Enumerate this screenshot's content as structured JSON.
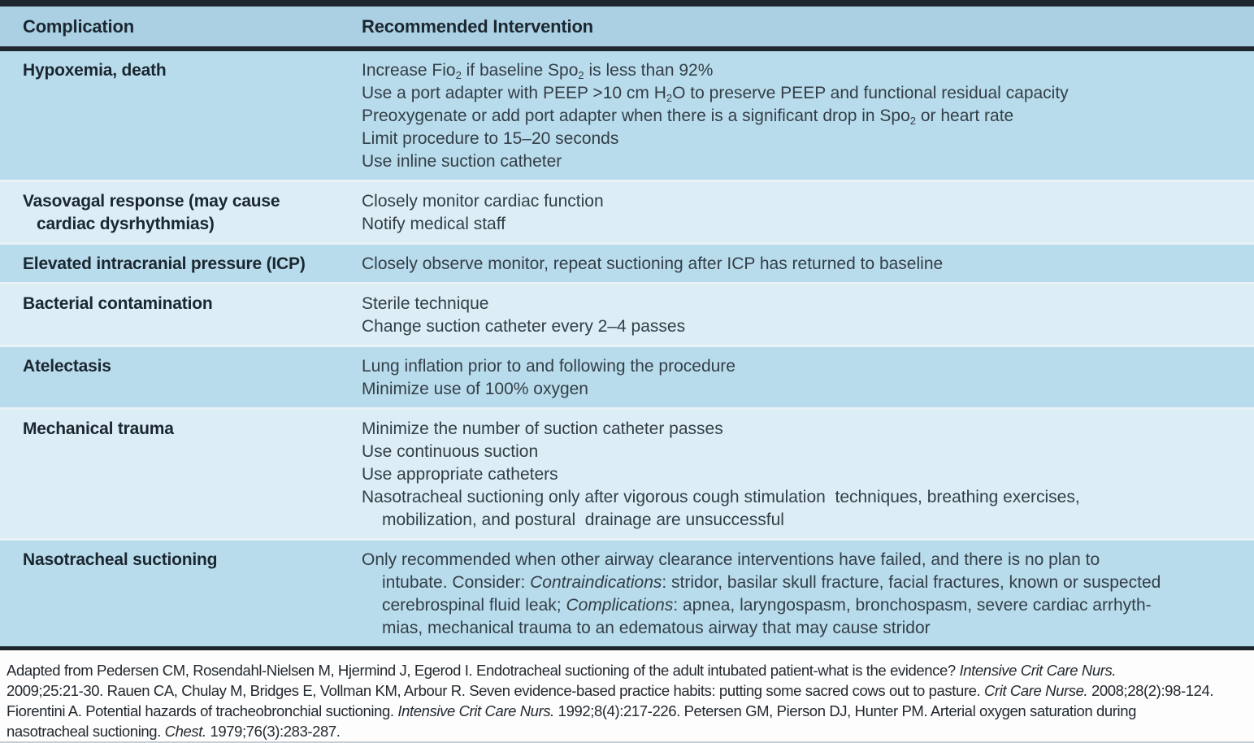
{
  "colors": {
    "header_bg": "#abd0e4",
    "row_medium": "#b9dcec",
    "row_light": "#dcedf5",
    "rule_dark": "#20262e",
    "heading_text": "#1b2730",
    "body_text": "#333e47",
    "footer_text": "#23292f",
    "page_bg": "#fdfdfd",
    "separator": "#e8f2f7",
    "bottom_strip": "#c6cfd5"
  },
  "table": {
    "headers": [
      {
        "label": "Complication"
      },
      {
        "label": "Recommended Intervention"
      }
    ],
    "rows": [
      {
        "tone": "medium",
        "complication": [
          {
            "seg": [
              {
                "t": "Hypoxemia, death"
              }
            ]
          }
        ],
        "interventions": [
          {
            "seg": [
              {
                "t": "Increase Fio"
              },
              {
                "t": "2",
                "s": true
              },
              {
                "t": " if baseline Spo"
              },
              {
                "t": "2",
                "s": true
              },
              {
                "t": " is less than 92%"
              }
            ]
          },
          {
            "seg": [
              {
                "t": "Use a port adapter with PEEP >10 cm H"
              },
              {
                "t": "2",
                "s": true
              },
              {
                "t": "O to preserve PEEP and functional residual capacity"
              }
            ]
          },
          {
            "seg": [
              {
                "t": "Preoxygenate or add port adapter when there is a significant drop in Spo"
              },
              {
                "t": "2",
                "s": true
              },
              {
                "t": " or heart rate"
              }
            ]
          },
          {
            "seg": [
              {
                "t": "Limit procedure to 15–20 seconds"
              }
            ]
          },
          {
            "seg": [
              {
                "t": "Use inline suction catheter"
              }
            ]
          }
        ]
      },
      {
        "tone": "light",
        "complication": [
          {
            "seg": [
              {
                "t": "Vasovagal response (may cause"
              }
            ]
          },
          {
            "ind": true,
            "seg": [
              {
                "t": "cardiac dysrhythmias)"
              }
            ]
          }
        ],
        "interventions": [
          {
            "seg": [
              {
                "t": "Closely monitor cardiac function"
              }
            ]
          },
          {
            "seg": [
              {
                "t": "Notify medical staff"
              }
            ]
          }
        ]
      },
      {
        "tone": "medium",
        "complication": [
          {
            "seg": [
              {
                "t": "Elevated intracranial pressure (ICP)"
              }
            ]
          }
        ],
        "interventions": [
          {
            "seg": [
              {
                "t": "Closely observe monitor, repeat suctioning after ICP has returned to baseline"
              }
            ]
          }
        ]
      },
      {
        "tone": "light",
        "complication": [
          {
            "seg": [
              {
                "t": "Bacterial contamination"
              }
            ]
          }
        ],
        "interventions": [
          {
            "seg": [
              {
                "t": "Sterile technique"
              }
            ]
          },
          {
            "seg": [
              {
                "t": "Change suction catheter every 2–4 passes"
              }
            ]
          }
        ]
      },
      {
        "tone": "medium",
        "complication": [
          {
            "seg": [
              {
                "t": "Atelectasis"
              }
            ]
          }
        ],
        "interventions": [
          {
            "seg": [
              {
                "t": "Lung inflation prior to and following the procedure"
              }
            ]
          },
          {
            "seg": [
              {
                "t": "Minimize use of 100% oxygen"
              }
            ]
          }
        ]
      },
      {
        "tone": "light",
        "complication": [
          {
            "seg": [
              {
                "t": "Mechanical trauma"
              }
            ]
          }
        ],
        "interventions": [
          {
            "seg": [
              {
                "t": "Minimize the number of suction catheter passes"
              }
            ]
          },
          {
            "seg": [
              {
                "t": "Use continuous suction"
              }
            ]
          },
          {
            "seg": [
              {
                "t": "Use appropriate catheters"
              }
            ]
          },
          {
            "seg": [
              {
                "t": "Nasotracheal suctioning only after vigorous cough stimulation  techniques, breathing exercises,"
              }
            ]
          },
          {
            "ind": true,
            "seg": [
              {
                "t": "mobilization, and postural  drainage are unsuccessful"
              }
            ]
          }
        ]
      },
      {
        "tone": "medium",
        "complication": [
          {
            "seg": [
              {
                "t": "Nasotracheal suctioning"
              }
            ]
          }
        ],
        "interventions": [
          {
            "seg": [
              {
                "t": "Only recommended when other airway clearance interventions have failed, and there is no plan to"
              }
            ]
          },
          {
            "ind": true,
            "seg": [
              {
                "t": "intubate. Consider: "
              },
              {
                "t": "Contraindications",
                "i": true
              },
              {
                "t": ": stridor, basilar skull fracture, facial fractures, known or suspected"
              }
            ]
          },
          {
            "ind": true,
            "seg": [
              {
                "t": "cerebrospinal fluid leak; "
              },
              {
                "t": "Complications",
                "i": true
              },
              {
                "t": ": apnea, laryngospasm, bronchospasm, severe cardiac arrhyth-"
              }
            ]
          },
          {
            "ind": true,
            "seg": [
              {
                "t": "mias, mechanical trauma to an edematous airway that may cause stridor"
              }
            ]
          }
        ]
      }
    ]
  },
  "footnote": {
    "lines": [
      {
        "seg": [
          {
            "t": "Adapted from  Pedersen CM, Rosendahl-Nielsen M, Hjermind J, Egerod I. Endotracheal suctioning of the adult intubated patient-what is the evidence? "
          },
          {
            "t": "Intensive Crit Care Nurs.",
            "i": true
          }
        ]
      },
      {
        "seg": [
          {
            "t": "2009;25:21-30. Rauen CA, Chulay M, Bridges E, Vollman KM, Arbour R. Seven evidence-based practice habits: putting some sacred cows out to pasture. "
          },
          {
            "t": "Crit Care Nurse.",
            "i": true
          },
          {
            "t": " 2008;28(2):98-124."
          }
        ]
      },
      {
        "seg": [
          {
            "t": "Fiorentini A. Potential hazards of tracheobronchial suctioning. "
          },
          {
            "t": "Intensive Crit Care Nurs.",
            "i": true
          },
          {
            "t": " 1992;8(4):217-226. Petersen GM, Pierson DJ, Hunter PM. Arterial oxygen saturation during"
          }
        ]
      },
      {
        "seg": [
          {
            "t": "nasotracheal suctioning. "
          },
          {
            "t": "Chest.",
            "i": true
          },
          {
            "t": " 1979;76(3):283-287."
          }
        ]
      }
    ]
  }
}
